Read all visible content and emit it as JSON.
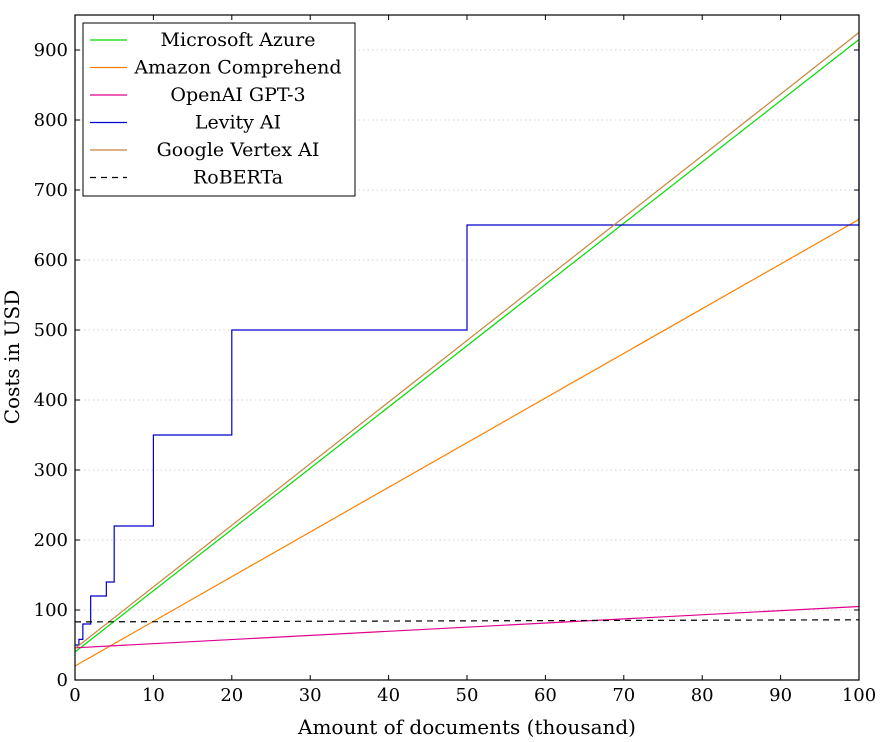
{
  "chart_data": {
    "type": "line",
    "xlabel": "Amount of documents (thousand)",
    "ylabel": "Costs in USD",
    "xlim": [
      0,
      100
    ],
    "ylim": [
      0,
      950
    ],
    "xticks": [
      0,
      10,
      20,
      30,
      40,
      50,
      60,
      70,
      80,
      90,
      100
    ],
    "yticks": [
      0,
      100,
      200,
      300,
      400,
      500,
      600,
      700,
      800,
      900
    ],
    "grid": "horizontal dotted",
    "legend_position": "top-left",
    "series": [
      {
        "name": "Microsoft Azure",
        "color": "#00dd00",
        "dash": "solid",
        "x": [
          0,
          100
        ],
        "y": [
          40,
          915
        ]
      },
      {
        "name": "Amazon Comprehend",
        "color": "#ff8000",
        "dash": "solid",
        "x": [
          0,
          100
        ],
        "y": [
          20,
          658
        ]
      },
      {
        "name": "OpenAI GPT-3",
        "color": "#e0008f",
        "dash": "solid",
        "x": [
          0,
          100
        ],
        "y": [
          46,
          105
        ]
      },
      {
        "name": "Levity AI",
        "color": "#0000cc",
        "dash": "solid",
        "step": true,
        "x": [
          0,
          0.5,
          0.5,
          1,
          1,
          2,
          2,
          4,
          4,
          5,
          5,
          10,
          10,
          20,
          20,
          50,
          50,
          100,
          100
        ],
        "y": [
          50,
          50,
          58,
          58,
          80,
          80,
          120,
          120,
          140,
          140,
          220,
          220,
          350,
          350,
          500,
          500,
          650,
          650,
          910
        ]
      },
      {
        "name": "Google Vertex AI",
        "color": "#c8843c",
        "dash": "solid",
        "x": [
          0,
          100
        ],
        "y": [
          45,
          925
        ]
      },
      {
        "name": "RoBERTa",
        "color": "#000000",
        "dash": "dashed",
        "x": [
          0,
          100
        ],
        "y": [
          83,
          86
        ]
      }
    ]
  }
}
